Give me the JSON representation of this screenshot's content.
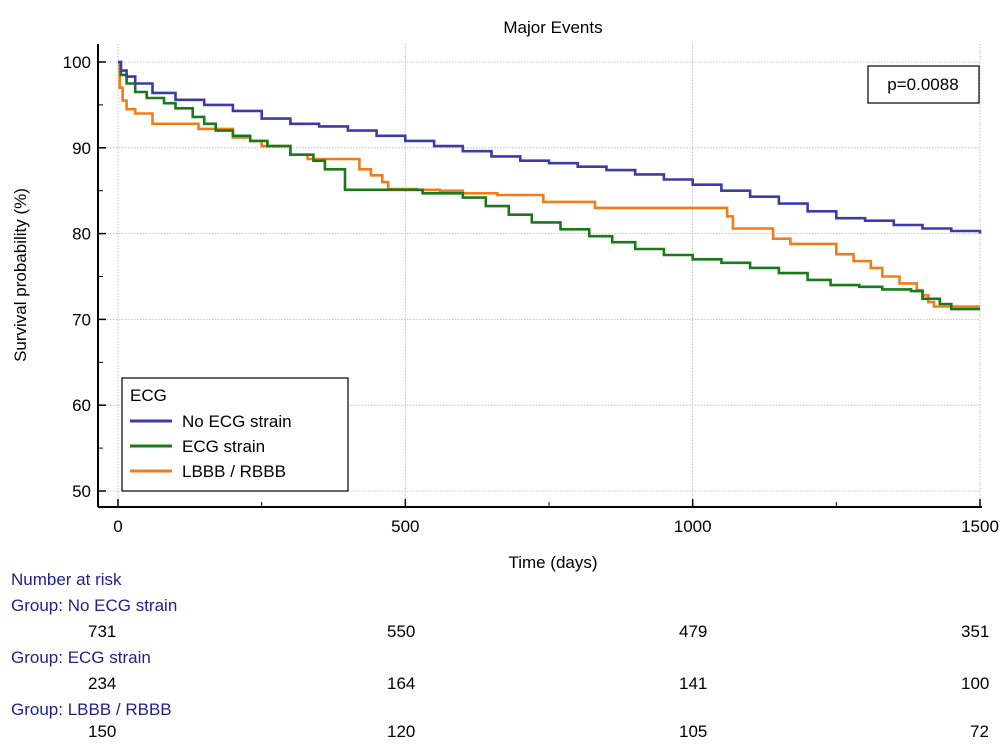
{
  "chart_data": {
    "type": "line",
    "title": "Major Events",
    "xlabel": "Time (days)",
    "ylabel": "Survival probability (%)",
    "xlim": [
      0,
      1500
    ],
    "ylim": [
      50,
      100
    ],
    "xticks": [
      0,
      500,
      1000,
      1500
    ],
    "yticks": [
      50,
      60,
      70,
      80,
      90,
      100
    ],
    "grid": true,
    "step": true,
    "annotation": "p=0.0088",
    "legend": {
      "title": "ECG",
      "placement": "bottom-left",
      "entries": [
        "No ECG strain",
        "ECG strain",
        "LBBB / RBBB"
      ]
    },
    "series": [
      {
        "name": "No ECG strain",
        "color": "#3c3ca8",
        "points": [
          [
            0,
            100
          ],
          [
            5,
            99
          ],
          [
            15,
            98.3
          ],
          [
            30,
            97.5
          ],
          [
            60,
            96.4
          ],
          [
            100,
            95.6
          ],
          [
            150,
            95
          ],
          [
            200,
            94.3
          ],
          [
            250,
            93.4
          ],
          [
            300,
            92.8
          ],
          [
            350,
            92.5
          ],
          [
            400,
            92
          ],
          [
            450,
            91.4
          ],
          [
            500,
            90.8
          ],
          [
            550,
            90.2
          ],
          [
            600,
            89.6
          ],
          [
            650,
            89
          ],
          [
            700,
            88.5
          ],
          [
            750,
            88.2
          ],
          [
            800,
            87.8
          ],
          [
            850,
            87.4
          ],
          [
            900,
            86.9
          ],
          [
            950,
            86.3
          ],
          [
            1000,
            85.7
          ],
          [
            1050,
            85
          ],
          [
            1100,
            84.3
          ],
          [
            1150,
            83.5
          ],
          [
            1200,
            82.6
          ],
          [
            1250,
            81.8
          ],
          [
            1300,
            81.5
          ],
          [
            1350,
            81
          ],
          [
            1400,
            80.6
          ],
          [
            1450,
            80.3
          ],
          [
            1500,
            80
          ]
        ]
      },
      {
        "name": "ECG strain",
        "color": "#1a7a1a",
        "points": [
          [
            0,
            100
          ],
          [
            5,
            98.5
          ],
          [
            15,
            97.5
          ],
          [
            30,
            96.5
          ],
          [
            50,
            95.8
          ],
          [
            80,
            95.2
          ],
          [
            100,
            94.6
          ],
          [
            130,
            93.6
          ],
          [
            150,
            92.8
          ],
          [
            170,
            92
          ],
          [
            200,
            91.4
          ],
          [
            230,
            90.8
          ],
          [
            260,
            90.2
          ],
          [
            300,
            89.2
          ],
          [
            340,
            88.5
          ],
          [
            360,
            87.5
          ],
          [
            390,
            87.5
          ],
          [
            395,
            85.1
          ],
          [
            450,
            85.1
          ],
          [
            500,
            85.1
          ],
          [
            530,
            84.7
          ],
          [
            600,
            84.2
          ],
          [
            640,
            83.2
          ],
          [
            680,
            82.2
          ],
          [
            720,
            81.3
          ],
          [
            770,
            80.5
          ],
          [
            820,
            79.7
          ],
          [
            860,
            79
          ],
          [
            900,
            78.2
          ],
          [
            950,
            77.5
          ],
          [
            1000,
            77
          ],
          [
            1050,
            76.6
          ],
          [
            1100,
            76
          ],
          [
            1150,
            75.4
          ],
          [
            1200,
            74.6
          ],
          [
            1240,
            74
          ],
          [
            1290,
            73.8
          ],
          [
            1330,
            73.5
          ],
          [
            1380,
            73.3
          ],
          [
            1400,
            72.4
          ],
          [
            1430,
            71.8
          ],
          [
            1450,
            71.2
          ],
          [
            1500,
            71.2
          ]
        ]
      },
      {
        "name": "LBBB / RBBB",
        "color": "#f07d1a",
        "points": [
          [
            0,
            100
          ],
          [
            3,
            97
          ],
          [
            8,
            95.5
          ],
          [
            15,
            94.5
          ],
          [
            30,
            94
          ],
          [
            60,
            92.8
          ],
          [
            120,
            92.8
          ],
          [
            140,
            92.2
          ],
          [
            180,
            92.2
          ],
          [
            200,
            91.2
          ],
          [
            230,
            90.8
          ],
          [
            250,
            90.2
          ],
          [
            300,
            89.2
          ],
          [
            330,
            88.7
          ],
          [
            410,
            88.7
          ],
          [
            420,
            87.5
          ],
          [
            440,
            86.8
          ],
          [
            460,
            86
          ],
          [
            470,
            85.2
          ],
          [
            520,
            85.1
          ],
          [
            560,
            85
          ],
          [
            600,
            84.7
          ],
          [
            660,
            84.5
          ],
          [
            730,
            84.5
          ],
          [
            740,
            83.7
          ],
          [
            830,
            83
          ],
          [
            930,
            83
          ],
          [
            1000,
            83
          ],
          [
            1060,
            82
          ],
          [
            1070,
            80.6
          ],
          [
            1110,
            80.6
          ],
          [
            1140,
            79.4
          ],
          [
            1170,
            78.8
          ],
          [
            1230,
            78.8
          ],
          [
            1250,
            77.6
          ],
          [
            1280,
            76.8
          ],
          [
            1310,
            76
          ],
          [
            1330,
            75
          ],
          [
            1360,
            74.2
          ],
          [
            1390,
            73.4
          ],
          [
            1400,
            72.8
          ],
          [
            1410,
            72
          ],
          [
            1420,
            71.5
          ],
          [
            1450,
            71.5
          ],
          [
            1500,
            71.5
          ]
        ]
      }
    ]
  },
  "risk_table": {
    "heading": "Number at risk",
    "groups": [
      {
        "label": "Group: No ECG strain",
        "values": [
          "731",
          "550",
          "479",
          "351"
        ]
      },
      {
        "label": "Group: ECG strain",
        "values": [
          "234",
          "164",
          "141",
          "100"
        ]
      },
      {
        "label": "Group: LBBB / RBBB",
        "values": [
          "150",
          "120",
          "105",
          "72"
        ]
      }
    ]
  }
}
